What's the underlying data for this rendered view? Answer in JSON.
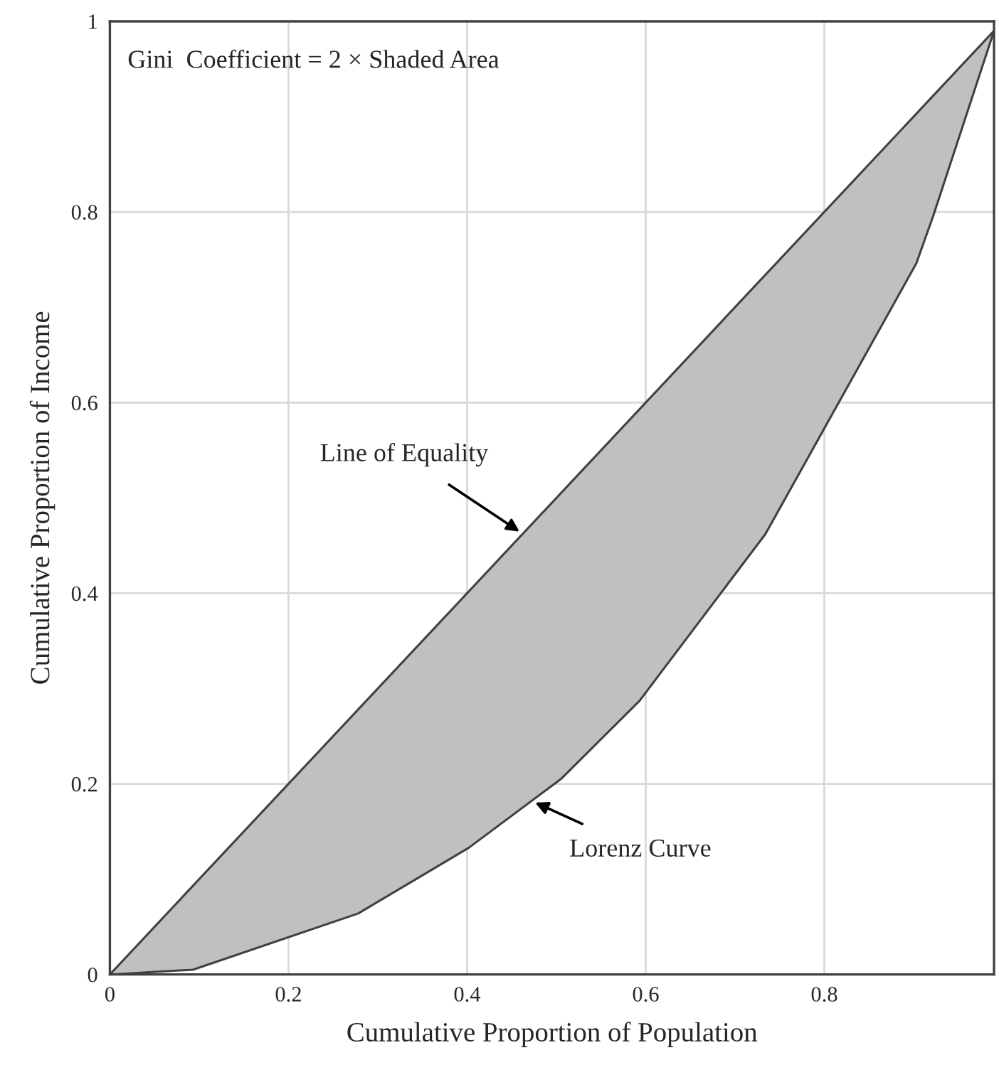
{
  "chart_data": {
    "type": "line",
    "xlabel": "Cumulative Proportion of Population",
    "ylabel": "Cumulative Proportion of Income",
    "series": [
      {
        "name": "Line of Equality",
        "color": "#404040",
        "x": [
          0,
          0.99
        ],
        "values": [
          0,
          0.99
        ]
      },
      {
        "name": "Lorenz Curve",
        "color": "#404040",
        "x": [
          0,
          0.093,
          0.278,
          0.402,
          0.505,
          0.593,
          0.734,
          0.903,
          0.922,
          0.99
        ],
        "values": [
          0,
          0.005,
          0.064,
          0.133,
          0.205,
          0.287,
          0.462,
          0.746,
          0.796,
          0.99
        ]
      }
    ],
    "annotations": [
      "Gini  Coefficient = 2 × Shaded Area"
    ],
    "xlim": [
      0,
      0.99
    ],
    "ylim": [
      0,
      1
    ],
    "xticks": [
      0,
      0.2,
      0.4,
      0.6,
      0.8
    ],
    "yticks": [
      0,
      0.2,
      0.4,
      0.6,
      0.8,
      1
    ],
    "grid": true,
    "marker": "none",
    "line_style": "solid"
  }
}
